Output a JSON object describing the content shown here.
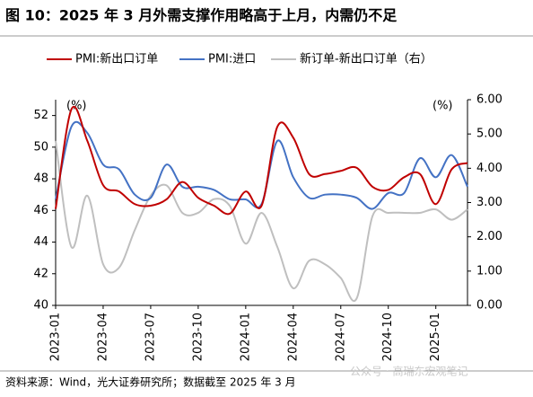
{
  "chart_data": {
    "type": "line",
    "title": "图 10：2025 年 3 月外需支撑作用略高于上月，内需仍不足",
    "y_unit": "(%)",
    "y2_unit": "(%)",
    "categories": [
      "2023-01",
      null,
      null,
      "2023-04",
      null,
      null,
      "2023-07",
      null,
      null,
      "2023-10",
      null,
      null,
      "2024-01",
      null,
      null,
      "2024-04",
      null,
      null,
      "2024-07",
      null,
      null,
      "2024-10",
      null,
      null,
      "2025-01",
      null,
      null
    ],
    "series": [
      {
        "name": "PMI:新出口订单",
        "color": "#c00000",
        "values": [
          46.1,
          52.4,
          50.4,
          47.6,
          47.2,
          46.4,
          46.3,
          46.7,
          47.8,
          46.8,
          46.3,
          45.8,
          47.2,
          46.3,
          51.3,
          50.6,
          48.3,
          48.3,
          48.5,
          48.7,
          47.5,
          47.3,
          48.1,
          48.3,
          46.4,
          48.6,
          49.0
        ]
      },
      {
        "name": "PMI:进口",
        "color": "#4472c4",
        "values": [
          46.7,
          51.3,
          50.9,
          48.9,
          48.6,
          47.0,
          46.8,
          48.9,
          47.5,
          47.5,
          47.3,
          46.7,
          46.7,
          46.4,
          50.4,
          48.1,
          46.8,
          47.0,
          47.0,
          46.8,
          46.1,
          47.1,
          47.1,
          49.3,
          48.1,
          49.5,
          47.5
        ]
      },
      {
        "name": "新订单-新出口订单（右）",
        "color": "#bfbfbf",
        "axis": "y2",
        "values": [
          4.8,
          1.7,
          3.2,
          1.2,
          1.1,
          2.2,
          3.2,
          3.5,
          2.7,
          2.7,
          3.1,
          2.9,
          1.8,
          2.7,
          1.7,
          0.5,
          1.3,
          1.2,
          0.8,
          0.2,
          2.6,
          2.7,
          2.7,
          2.7,
          2.8,
          2.5,
          2.8
        ]
      }
    ],
    "ylim": [
      40,
      53
    ],
    "yticks": [
      40,
      42,
      44,
      46,
      48,
      50,
      52
    ],
    "y2lim": [
      0,
      6
    ],
    "y2ticks": [
      {
        "value": 0,
        "label": "0.00"
      },
      {
        "value": 1,
        "label": "1.00"
      },
      {
        "value": 2,
        "label": "2.00"
      },
      {
        "value": 3,
        "label": "3.00"
      },
      {
        "value": 4,
        "label": "4.00"
      },
      {
        "value": 5,
        "label": "5.00"
      },
      {
        "value": 6,
        "label": "6.00"
      }
    ],
    "source": "资料来源：Wind，光大证券研究所；数据截至 2025 年 3 月",
    "watermark": "公众号 · 高瑞东宏观笔记"
  }
}
